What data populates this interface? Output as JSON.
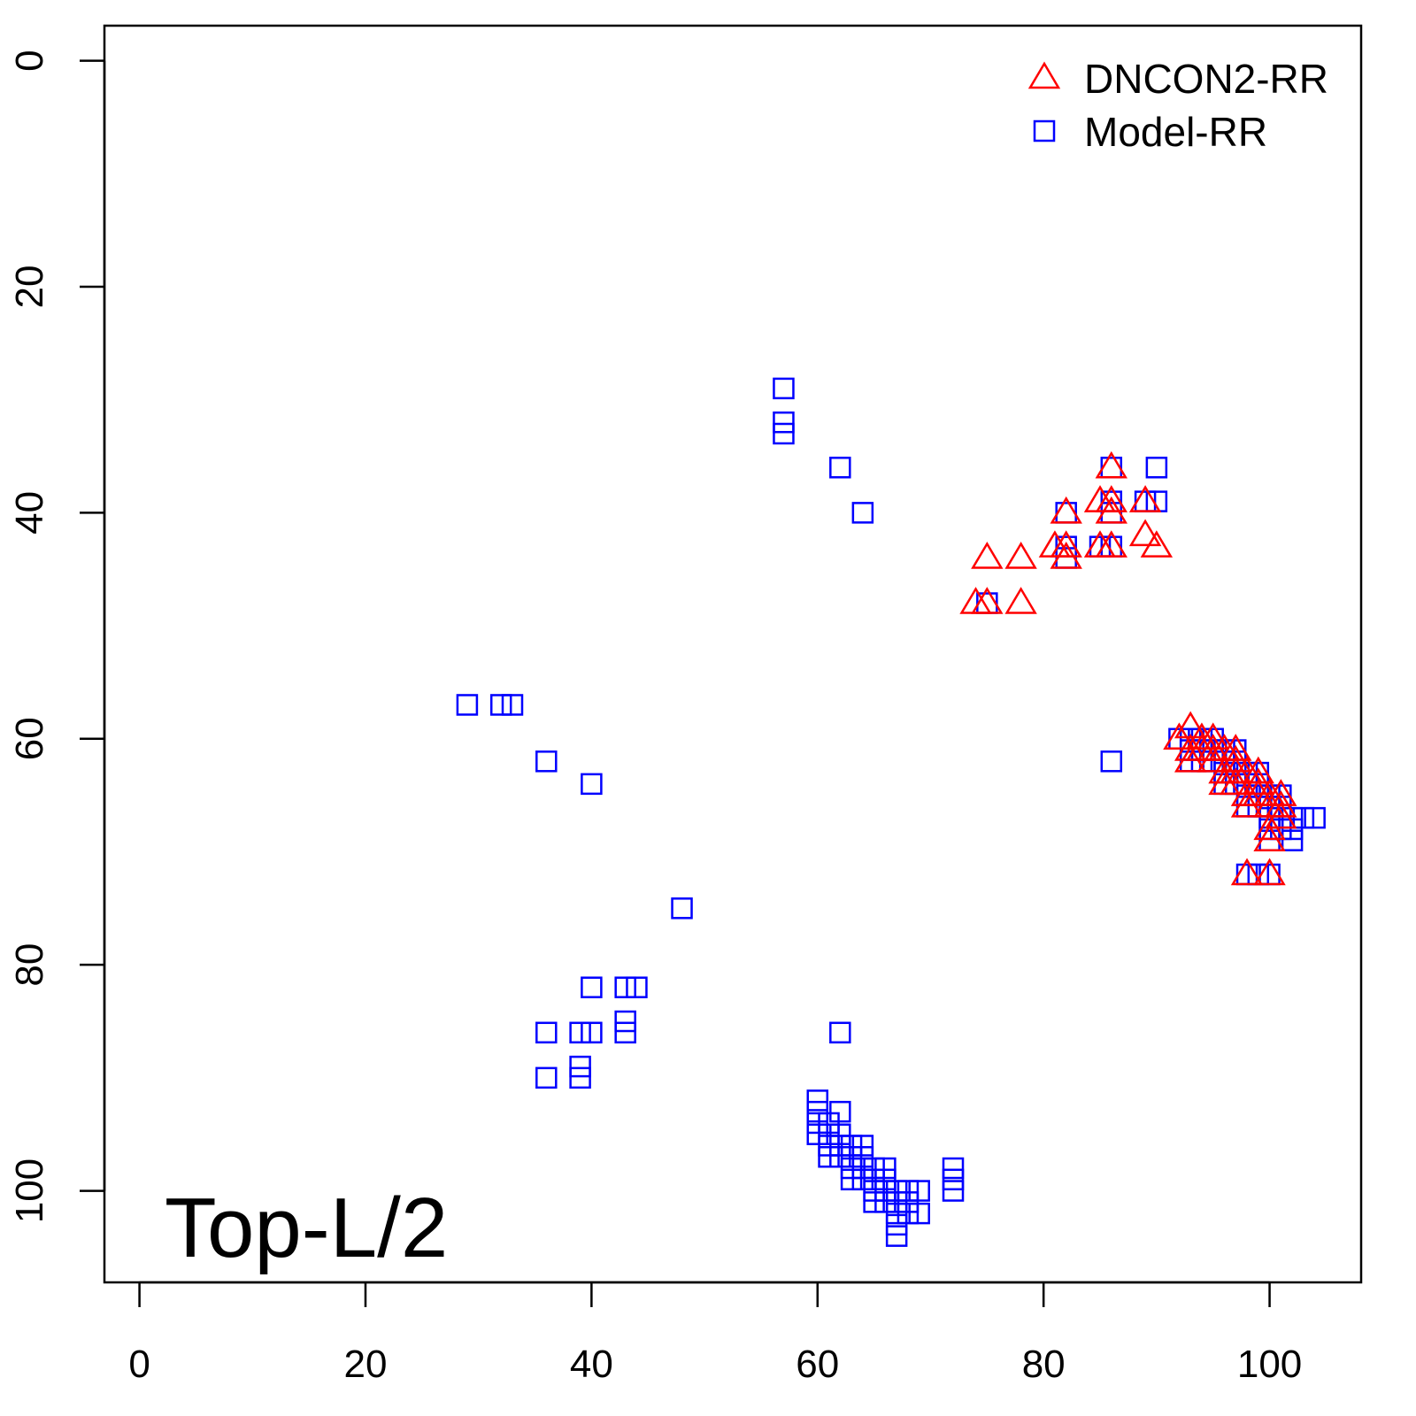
{
  "chart_data": {
    "type": "scatter",
    "title": "",
    "xlabel": "",
    "ylabel": "",
    "xlim": [
      -3.1,
      108.1
    ],
    "ylim": [
      -3.1,
      108.1
    ],
    "y_reversed": true,
    "grid": false,
    "x_ticks": [
      0,
      20,
      40,
      60,
      80,
      100
    ],
    "y_ticks": [
      0,
      20,
      40,
      60,
      80,
      100
    ],
    "annotation": "Top-L/2",
    "legend": {
      "placement": "top-right",
      "entries": [
        {
          "name": "DNCON2-RR",
          "color": "#ff0000",
          "marker": "triangle"
        },
        {
          "name": "Model-RR",
          "color": "#0000ff",
          "marker": "square"
        }
      ]
    },
    "series": [
      {
        "name": "Model-RR",
        "color": "#0000ff",
        "marker": "square",
        "points": [
          [
            57,
            29
          ],
          [
            57,
            32
          ],
          [
            57,
            33
          ],
          [
            62,
            36
          ],
          [
            64,
            40
          ],
          [
            29,
            57
          ],
          [
            32,
            57
          ],
          [
            33,
            57
          ],
          [
            36,
            62
          ],
          [
            40,
            64
          ],
          [
            48,
            75
          ],
          [
            40,
            82
          ],
          [
            43,
            82
          ],
          [
            44,
            82
          ],
          [
            43,
            85
          ],
          [
            43,
            86
          ],
          [
            36,
            86
          ],
          [
            39,
            86
          ],
          [
            40,
            86
          ],
          [
            62,
            86
          ],
          [
            36,
            90
          ],
          [
            39,
            89
          ],
          [
            39,
            90
          ],
          [
            60,
            92
          ],
          [
            60,
            93
          ],
          [
            60,
            94
          ],
          [
            60,
            95
          ],
          [
            61,
            94
          ],
          [
            61,
            95
          ],
          [
            61,
            96
          ],
          [
            61,
            97
          ],
          [
            62,
            93
          ],
          [
            62,
            95
          ],
          [
            62,
            96
          ],
          [
            62,
            97
          ],
          [
            63,
            96
          ],
          [
            63,
            97
          ],
          [
            63,
            98
          ],
          [
            63,
            99
          ],
          [
            64,
            96
          ],
          [
            64,
            97
          ],
          [
            64,
            98
          ],
          [
            64,
            99
          ],
          [
            65,
            98
          ],
          [
            65,
            99
          ],
          [
            65,
            100
          ],
          [
            65,
            101
          ],
          [
            66,
            98
          ],
          [
            66,
            99
          ],
          [
            66,
            100
          ],
          [
            66,
            101
          ],
          [
            67,
            100
          ],
          [
            67,
            101
          ],
          [
            67,
            102
          ],
          [
            67,
            103
          ],
          [
            67,
            104
          ],
          [
            68,
            100
          ],
          [
            68,
            101
          ],
          [
            68,
            102
          ],
          [
            69,
            100
          ],
          [
            69,
            102
          ],
          [
            72,
            98
          ],
          [
            72,
            99
          ],
          [
            72,
            100
          ],
          [
            75,
            48
          ],
          [
            82,
            40
          ],
          [
            82,
            43
          ],
          [
            82,
            44
          ],
          [
            85,
            43
          ],
          [
            86,
            43
          ],
          [
            86,
            36
          ],
          [
            86,
            39
          ],
          [
            86,
            40
          ],
          [
            89,
            39
          ],
          [
            90,
            39
          ],
          [
            90,
            36
          ],
          [
            86,
            62
          ],
          [
            92,
            60
          ],
          [
            93,
            60
          ],
          [
            93,
            61
          ],
          [
            93,
            62
          ],
          [
            94,
            60
          ],
          [
            94,
            61
          ],
          [
            94,
            62
          ],
          [
            95,
            60
          ],
          [
            95,
            61
          ],
          [
            95,
            62
          ],
          [
            96,
            61
          ],
          [
            96,
            62
          ],
          [
            96,
            63
          ],
          [
            96,
            64
          ],
          [
            97,
            61
          ],
          [
            97,
            62
          ],
          [
            97,
            63
          ],
          [
            97,
            64
          ],
          [
            98,
            63
          ],
          [
            98,
            64
          ],
          [
            98,
            65
          ],
          [
            98,
            66
          ],
          [
            99,
            63
          ],
          [
            99,
            64
          ],
          [
            99,
            65
          ],
          [
            99,
            66
          ],
          [
            100,
            65
          ],
          [
            100,
            66
          ],
          [
            100,
            67
          ],
          [
            100,
            68
          ],
          [
            100,
            69
          ],
          [
            100,
            72
          ],
          [
            101,
            65
          ],
          [
            101,
            66
          ],
          [
            101,
            67
          ],
          [
            101,
            68
          ],
          [
            102,
            67
          ],
          [
            102,
            68
          ],
          [
            102,
            69
          ],
          [
            103,
            67
          ],
          [
            104,
            67
          ],
          [
            98,
            72
          ],
          [
            99,
            72
          ]
        ]
      },
      {
        "name": "DNCON2-RR",
        "color": "#ff0000",
        "marker": "triangle",
        "points": [
          [
            86,
            36
          ],
          [
            85,
            39
          ],
          [
            86,
            39
          ],
          [
            86,
            40
          ],
          [
            89,
            39
          ],
          [
            82,
            40
          ],
          [
            81,
            43
          ],
          [
            82,
            43
          ],
          [
            82,
            44
          ],
          [
            85,
            43
          ],
          [
            86,
            43
          ],
          [
            89,
            42
          ],
          [
            90,
            43
          ],
          [
            75,
            44
          ],
          [
            78,
            44
          ],
          [
            74,
            48
          ],
          [
            75,
            48
          ],
          [
            78,
            48
          ],
          [
            92,
            60
          ],
          [
            93,
            59
          ],
          [
            93,
            61
          ],
          [
            93,
            62
          ],
          [
            94,
            60
          ],
          [
            94,
            61
          ],
          [
            95,
            60
          ],
          [
            95,
            61
          ],
          [
            95,
            62
          ],
          [
            96,
            61
          ],
          [
            96,
            63
          ],
          [
            96,
            64
          ],
          [
            97,
            61
          ],
          [
            97,
            62
          ],
          [
            97,
            63
          ],
          [
            97,
            64
          ],
          [
            98,
            63
          ],
          [
            98,
            65
          ],
          [
            98,
            66
          ],
          [
            99,
            63
          ],
          [
            99,
            64
          ],
          [
            99,
            65
          ],
          [
            100,
            65
          ],
          [
            100,
            66
          ],
          [
            100,
            68
          ],
          [
            100,
            69
          ],
          [
            101,
            65
          ],
          [
            101,
            66
          ],
          [
            101,
            67
          ],
          [
            98,
            72
          ],
          [
            100,
            72
          ]
        ]
      }
    ]
  }
}
